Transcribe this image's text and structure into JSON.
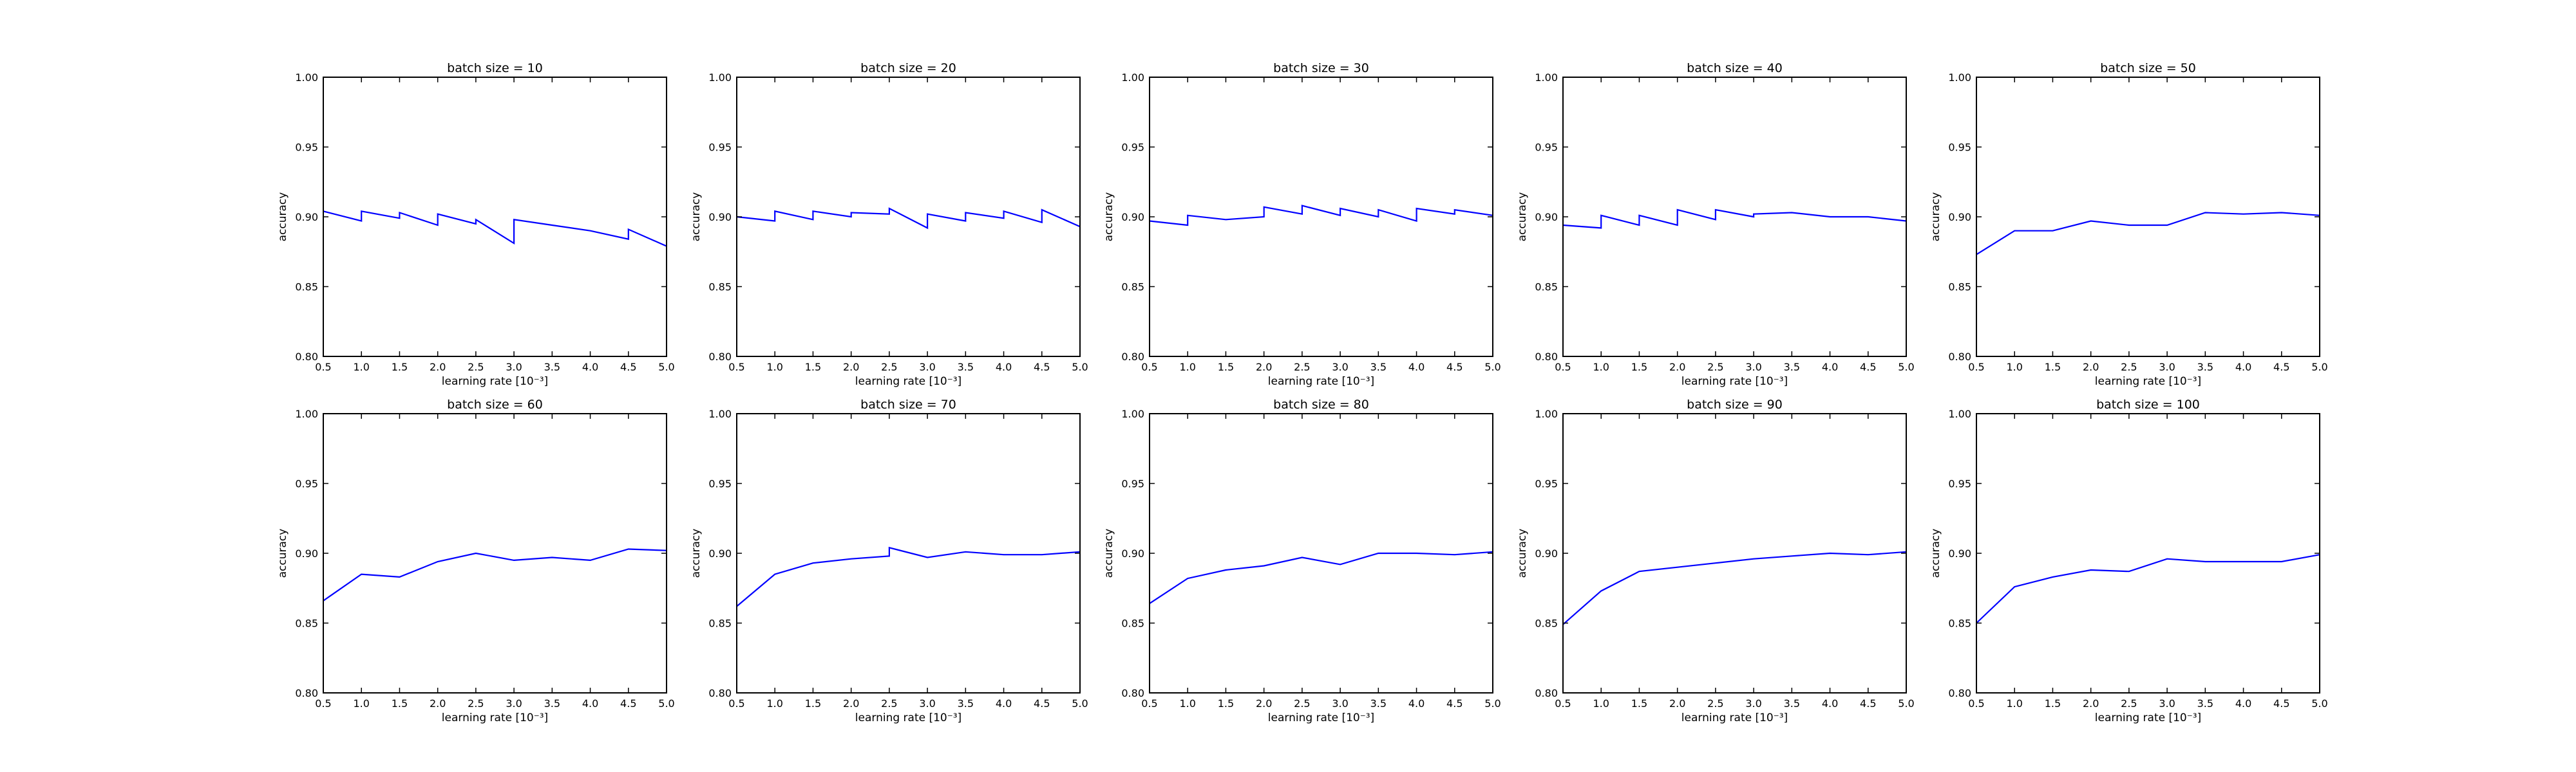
{
  "colors": {
    "background": "#ffffff",
    "axes": "#000000",
    "line": "#0000ff"
  },
  "chart_data": [
    {
      "type": "line",
      "title": "batch size = 10",
      "xlabel": "learning rate [10⁻³]",
      "ylabel": "accuracy",
      "xlim": [
        0.5,
        5.0
      ],
      "ylim": [
        0.8,
        1.0
      ],
      "xticks": [
        "0.5",
        "1.0",
        "1.5",
        "2.0",
        "2.5",
        "3.0",
        "3.5",
        "4.0",
        "4.5",
        "5.0"
      ],
      "yticks": [
        "0.80",
        "0.85",
        "0.90",
        "0.95",
        "1.00"
      ],
      "grid": false,
      "series": [
        {
          "x": [
            0.5,
            1.0,
            1.0,
            1.5,
            1.5,
            2.0,
            2.0,
            2.5,
            2.5,
            3.0,
            3.0,
            3.5,
            4.0,
            4.5,
            4.5,
            5.0
          ],
          "y": [
            0.904,
            0.897,
            0.904,
            0.899,
            0.903,
            0.894,
            0.902,
            0.895,
            0.898,
            0.881,
            0.898,
            0.894,
            0.89,
            0.884,
            0.891,
            0.879
          ]
        }
      ]
    },
    {
      "type": "line",
      "title": "batch size = 20",
      "xlabel": "learning rate [10⁻³]",
      "ylabel": "accuracy",
      "xlim": [
        0.5,
        5.0
      ],
      "ylim": [
        0.8,
        1.0
      ],
      "xticks": [
        "0.5",
        "1.0",
        "1.5",
        "2.0",
        "2.5",
        "3.0",
        "3.5",
        "4.0",
        "4.5",
        "5.0"
      ],
      "yticks": [
        "0.80",
        "0.85",
        "0.90",
        "0.95",
        "1.00"
      ],
      "grid": false,
      "series": [
        {
          "x": [
            0.5,
            1.0,
            1.0,
            1.5,
            1.5,
            2.0,
            2.0,
            2.5,
            2.5,
            3.0,
            3.0,
            3.5,
            3.5,
            4.0,
            4.0,
            4.5,
            4.5,
            5.0
          ],
          "y": [
            0.9,
            0.897,
            0.904,
            0.898,
            0.904,
            0.9,
            0.903,
            0.902,
            0.906,
            0.892,
            0.902,
            0.897,
            0.903,
            0.899,
            0.904,
            0.896,
            0.905,
            0.893
          ]
        }
      ]
    },
    {
      "type": "line",
      "title": "batch size = 30",
      "xlabel": "learning rate [10⁻³]",
      "ylabel": "accuracy",
      "xlim": [
        0.5,
        5.0
      ],
      "ylim": [
        0.8,
        1.0
      ],
      "xticks": [
        "0.5",
        "1.0",
        "1.5",
        "2.0",
        "2.5",
        "3.0",
        "3.5",
        "4.0",
        "4.5",
        "5.0"
      ],
      "yticks": [
        "0.80",
        "0.85",
        "0.90",
        "0.95",
        "1.00"
      ],
      "grid": false,
      "series": [
        {
          "x": [
            0.5,
            1.0,
            1.0,
            1.5,
            2.0,
            2.0,
            2.5,
            2.5,
            3.0,
            3.0,
            3.5,
            3.5,
            4.0,
            4.0,
            4.5,
            4.5,
            5.0
          ],
          "y": [
            0.897,
            0.894,
            0.901,
            0.898,
            0.9,
            0.907,
            0.902,
            0.908,
            0.901,
            0.906,
            0.9,
            0.905,
            0.897,
            0.906,
            0.902,
            0.905,
            0.901
          ]
        }
      ]
    },
    {
      "type": "line",
      "title": "batch size = 40",
      "xlabel": "learning rate [10⁻³]",
      "ylabel": "accuracy",
      "xlim": [
        0.5,
        5.0
      ],
      "ylim": [
        0.8,
        1.0
      ],
      "xticks": [
        "0.5",
        "1.0",
        "1.5",
        "2.0",
        "2.5",
        "3.0",
        "3.5",
        "4.0",
        "4.5",
        "5.0"
      ],
      "yticks": [
        "0.80",
        "0.85",
        "0.90",
        "0.95",
        "1.00"
      ],
      "grid": false,
      "series": [
        {
          "x": [
            0.5,
            1.0,
            1.0,
            1.5,
            1.5,
            2.0,
            2.0,
            2.5,
            2.5,
            3.0,
            3.0,
            3.5,
            4.0,
            4.5,
            5.0
          ],
          "y": [
            0.894,
            0.892,
            0.901,
            0.894,
            0.901,
            0.894,
            0.905,
            0.898,
            0.905,
            0.9,
            0.902,
            0.903,
            0.9,
            0.9,
            0.897
          ]
        }
      ]
    },
    {
      "type": "line",
      "title": "batch size = 50",
      "xlabel": "learning rate [10⁻³]",
      "ylabel": "accuracy",
      "xlim": [
        0.5,
        5.0
      ],
      "ylim": [
        0.8,
        1.0
      ],
      "xticks": [
        "0.5",
        "1.0",
        "1.5",
        "2.0",
        "2.5",
        "3.0",
        "3.5",
        "4.0",
        "4.5",
        "5.0"
      ],
      "yticks": [
        "0.80",
        "0.85",
        "0.90",
        "0.95",
        "1.00"
      ],
      "grid": false,
      "series": [
        {
          "x": [
            0.5,
            1.0,
            1.5,
            2.0,
            2.5,
            3.0,
            3.5,
            4.0,
            4.5,
            5.0
          ],
          "y": [
            0.873,
            0.89,
            0.89,
            0.897,
            0.894,
            0.894,
            0.903,
            0.902,
            0.903,
            0.901
          ]
        }
      ]
    },
    {
      "type": "line",
      "title": "batch size = 60",
      "xlabel": "learning rate [10⁻³]",
      "ylabel": "accuracy",
      "xlim": [
        0.5,
        5.0
      ],
      "ylim": [
        0.8,
        1.0
      ],
      "xticks": [
        "0.5",
        "1.0",
        "1.5",
        "2.0",
        "2.5",
        "3.0",
        "3.5",
        "4.0",
        "4.5",
        "5.0"
      ],
      "yticks": [
        "0.80",
        "0.85",
        "0.90",
        "0.95",
        "1.00"
      ],
      "grid": false,
      "series": [
        {
          "x": [
            0.5,
            1.0,
            1.5,
            2.0,
            2.5,
            3.0,
            3.5,
            4.0,
            4.5,
            5.0
          ],
          "y": [
            0.866,
            0.885,
            0.883,
            0.894,
            0.9,
            0.895,
            0.897,
            0.895,
            0.903,
            0.902
          ]
        }
      ]
    },
    {
      "type": "line",
      "title": "batch size = 70",
      "xlabel": "learning rate [10⁻³]",
      "ylabel": "accuracy",
      "xlim": [
        0.5,
        5.0
      ],
      "ylim": [
        0.8,
        1.0
      ],
      "xticks": [
        "0.5",
        "1.0",
        "1.5",
        "2.0",
        "2.5",
        "3.0",
        "3.5",
        "4.0",
        "4.5",
        "5.0"
      ],
      "yticks": [
        "0.80",
        "0.85",
        "0.90",
        "0.95",
        "1.00"
      ],
      "grid": false,
      "series": [
        {
          "x": [
            0.5,
            1.0,
            1.5,
            2.0,
            2.5,
            2.5,
            3.0,
            3.5,
            4.0,
            4.5,
            5.0
          ],
          "y": [
            0.862,
            0.885,
            0.893,
            0.896,
            0.898,
            0.904,
            0.897,
            0.901,
            0.899,
            0.899,
            0.901
          ]
        }
      ]
    },
    {
      "type": "line",
      "title": "batch size = 80",
      "xlabel": "learning rate [10⁻³]",
      "ylabel": "accuracy",
      "xlim": [
        0.5,
        5.0
      ],
      "ylim": [
        0.8,
        1.0
      ],
      "xticks": [
        "0.5",
        "1.0",
        "1.5",
        "2.0",
        "2.5",
        "3.0",
        "3.5",
        "4.0",
        "4.5",
        "5.0"
      ],
      "yticks": [
        "0.80",
        "0.85",
        "0.90",
        "0.95",
        "1.00"
      ],
      "grid": false,
      "series": [
        {
          "x": [
            0.5,
            1.0,
            1.5,
            2.0,
            2.5,
            3.0,
            3.5,
            4.0,
            4.5,
            5.0
          ],
          "y": [
            0.864,
            0.882,
            0.888,
            0.891,
            0.897,
            0.892,
            0.9,
            0.9,
            0.899,
            0.901
          ]
        }
      ]
    },
    {
      "type": "line",
      "title": "batch size = 90",
      "xlabel": "learning rate [10⁻³]",
      "ylabel": "accuracy",
      "xlim": [
        0.5,
        5.0
      ],
      "ylim": [
        0.8,
        1.0
      ],
      "xticks": [
        "0.5",
        "1.0",
        "1.5",
        "2.0",
        "2.5",
        "3.0",
        "3.5",
        "4.0",
        "4.5",
        "5.0"
      ],
      "yticks": [
        "0.80",
        "0.85",
        "0.90",
        "0.95",
        "1.00"
      ],
      "grid": false,
      "series": [
        {
          "x": [
            0.5,
            1.0,
            1.5,
            2.0,
            2.5,
            3.0,
            3.5,
            4.0,
            4.5,
            5.0
          ],
          "y": [
            0.849,
            0.873,
            0.887,
            0.89,
            0.893,
            0.896,
            0.898,
            0.9,
            0.899,
            0.901
          ]
        }
      ]
    },
    {
      "type": "line",
      "title": "batch size = 100",
      "xlabel": "learning rate [10⁻³]",
      "ylabel": "accuracy",
      "xlim": [
        0.5,
        5.0
      ],
      "ylim": [
        0.8,
        1.0
      ],
      "xticks": [
        "0.5",
        "1.0",
        "1.5",
        "2.0",
        "2.5",
        "3.0",
        "3.5",
        "4.0",
        "4.5",
        "5.0"
      ],
      "yticks": [
        "0.80",
        "0.85",
        "0.90",
        "0.95",
        "1.00"
      ],
      "grid": false,
      "series": [
        {
          "x": [
            0.5,
            1.0,
            1.5,
            2.0,
            2.5,
            3.0,
            3.5,
            4.0,
            4.5,
            5.0
          ],
          "y": [
            0.85,
            0.876,
            0.883,
            0.888,
            0.887,
            0.896,
            0.894,
            0.894,
            0.894,
            0.899
          ]
        }
      ]
    }
  ]
}
